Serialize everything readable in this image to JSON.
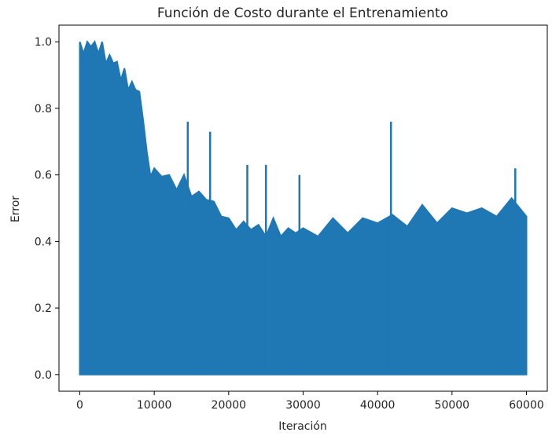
{
  "chart_data": {
    "type": "line",
    "title": "Función de Costo durante el Entrenamiento",
    "xlabel": "Iteración",
    "ylabel": "Error",
    "xlim": [
      -2800,
      62800
    ],
    "ylim": [
      -0.05,
      1.05
    ],
    "grid": false,
    "legend": "none",
    "x_ticks": [
      0,
      10000,
      20000,
      30000,
      40000,
      50000,
      60000
    ],
    "x_tick_labels": [
      "0",
      "10000",
      "20000",
      "30000",
      "40000",
      "50000",
      "60000"
    ],
    "y_ticks": [
      0.0,
      0.2,
      0.4,
      0.6,
      0.8,
      1.0
    ],
    "y_tick_labels": [
      "0.0",
      "0.2",
      "0.4",
      "0.6",
      "0.8",
      "1.0"
    ],
    "series": [
      {
        "color": "#1f77b4",
        "lower_bound": 0.0,
        "x": [
          0,
          500,
          1000,
          1500,
          2000,
          2500,
          3000,
          3500,
          4000,
          4500,
          5000,
          5500,
          6000,
          6500,
          7000,
          7500,
          8000,
          8500,
          9000,
          9500,
          10000,
          11000,
          12000,
          13000,
          14000,
          15000,
          16000,
          17000,
          18000,
          19000,
          20000,
          21000,
          22000,
          23000,
          24000,
          25000,
          26000,
          27000,
          28000,
          29000,
          30000,
          32000,
          34000,
          36000,
          38000,
          40000,
          42000,
          44000,
          46000,
          48000,
          50000,
          52000,
          54000,
          56000,
          58000,
          60000
        ],
        "y": [
          1.0,
          1.0,
          1.0,
          1.0,
          1.0,
          1.0,
          0.99,
          0.97,
          0.96,
          0.95,
          0.94,
          0.92,
          0.9,
          0.89,
          0.88,
          0.87,
          0.85,
          0.8,
          0.65,
          0.63,
          0.62,
          0.61,
          0.6,
          0.59,
          0.58,
          0.57,
          0.55,
          0.54,
          0.52,
          0.51,
          0.45,
          0.47,
          0.46,
          0.45,
          0.45,
          0.45,
          0.45,
          0.45,
          0.44,
          0.44,
          0.44,
          0.45,
          0.45,
          0.46,
          0.47,
          0.47,
          0.48,
          0.48,
          0.49,
          0.49,
          0.5,
          0.5,
          0.5,
          0.51,
          0.51,
          0.51
        ],
        "spikes": [
          [
            14500,
            0.76
          ],
          [
            17500,
            0.73
          ],
          [
            22500,
            0.63
          ],
          [
            25000,
            0.63
          ],
          [
            29500,
            0.6
          ],
          [
            41800,
            0.76
          ],
          [
            58500,
            0.62
          ]
        ]
      }
    ]
  }
}
